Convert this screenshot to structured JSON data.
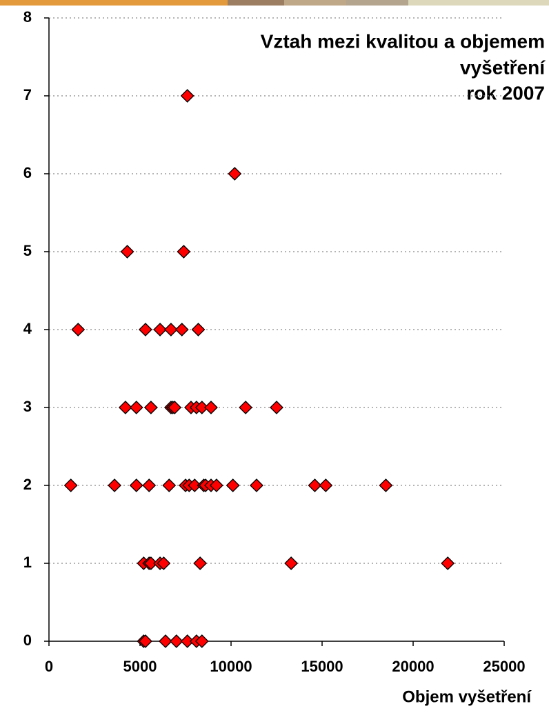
{
  "chart_data": {
    "type": "scatter",
    "title": [
      "Vztah mezi kvalitou a objemem",
      "vyšetření",
      "rok 2007"
    ],
    "x_label": "Objem vyšetření",
    "color": "#ff0000",
    "grid": true,
    "xlim": [
      0,
      25000
    ],
    "xticks": [
      0,
      5000,
      10000,
      15000,
      20000,
      25000
    ],
    "ylim": [
      0,
      8
    ],
    "yticks": [
      0,
      1,
      2,
      3,
      4,
      5,
      6,
      7,
      8
    ],
    "x": [
      7600,
      10200,
      4300,
      7400,
      1600,
      5300,
      6100,
      6700,
      7300,
      8200,
      4200,
      4800,
      5600,
      6700,
      6800,
      6900,
      7800,
      8100,
      8400,
      8900,
      10800,
      12500,
      1200,
      3600,
      4800,
      5500,
      6600,
      7500,
      7700,
      8000,
      8500,
      8600,
      8900,
      9200,
      10100,
      11400,
      14600,
      15200,
      18500,
      5200,
      5500,
      5600,
      6100,
      6300,
      8300,
      13300,
      21900,
      5200,
      5300,
      6400,
      7000,
      7600,
      8100,
      8400
    ],
    "values": [
      7,
      6,
      5,
      5,
      4,
      4,
      4,
      4,
      4,
      4,
      3,
      3,
      3,
      3,
      3,
      3,
      3,
      3,
      3,
      3,
      3,
      3,
      2,
      2,
      2,
      2,
      2,
      2,
      2,
      2,
      2,
      2,
      2,
      2,
      2,
      2,
      2,
      2,
      2,
      1,
      1,
      1,
      1,
      1,
      1,
      1,
      1,
      0,
      0,
      0,
      0,
      0,
      0,
      0
    ]
  }
}
